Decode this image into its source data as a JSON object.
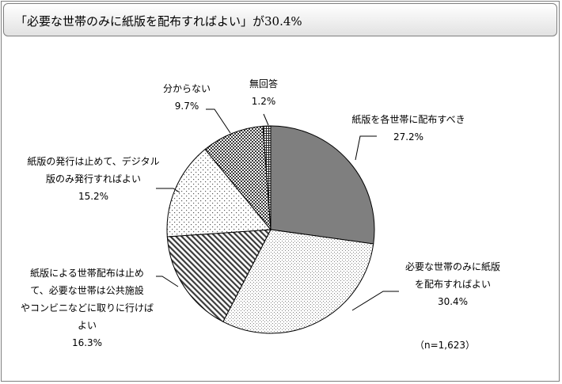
{
  "title": {
    "main": "「必要な世帯のみに紙版を配布すればよい」が",
    "value": "30.4%"
  },
  "note": "（n=1,623）",
  "chart_data": {
    "type": "pie",
    "title": "「必要な世帯のみに紙版を配布すればよい」が30.4%",
    "n": 1623,
    "start": "12 o'clock",
    "direction": "clockwise",
    "slices": [
      {
        "label": "紙版を各世帯に配布すべき",
        "value": 27.2,
        "value_label": "27.2%",
        "lines": [
          "紙版を各世帯に配布すべき"
        ],
        "fill": "#7f7f7f",
        "pattern": "solid"
      },
      {
        "label": "必要な世帯のみに紙版を配布すればよい",
        "value": 30.4,
        "value_label": "30.4%",
        "lines": [
          "必要な世帯のみに紙版",
          "を配布すればよい"
        ],
        "fill": "#ffffff",
        "pattern": "fine-dots"
      },
      {
        "label": "紙版による世帯配布は止めて、必要な世帯は公共施設やコンビニなどに取りに行けばよい",
        "value": 16.3,
        "value_label": "16.3%",
        "lines": [
          "紙版による世帯配布は止め",
          "て、必要な世帯は公共施設",
          "やコンビニなどに取りに行けば",
          "よい"
        ],
        "fill": "#ffffff",
        "pattern": "diagonal-hatch"
      },
      {
        "label": "紙版の発行は止めて、デジタル版のみ発行すればよい",
        "value": 15.2,
        "value_label": "15.2%",
        "lines": [
          "紙版の発行は止めて、デジタル",
          "版のみ発行すればよい"
        ],
        "fill": "#ffffff",
        "pattern": "sparse-dots"
      },
      {
        "label": "分からない",
        "value": 9.7,
        "value_label": "9.7%",
        "lines": [
          "分からない"
        ],
        "fill": "#595959",
        "pattern": "checker"
      },
      {
        "label": "無回答",
        "value": 1.2,
        "value_label": "1.2%",
        "lines": [
          "無回答"
        ],
        "fill": "#ffffff",
        "pattern": "grid"
      }
    ],
    "legend": "none"
  }
}
